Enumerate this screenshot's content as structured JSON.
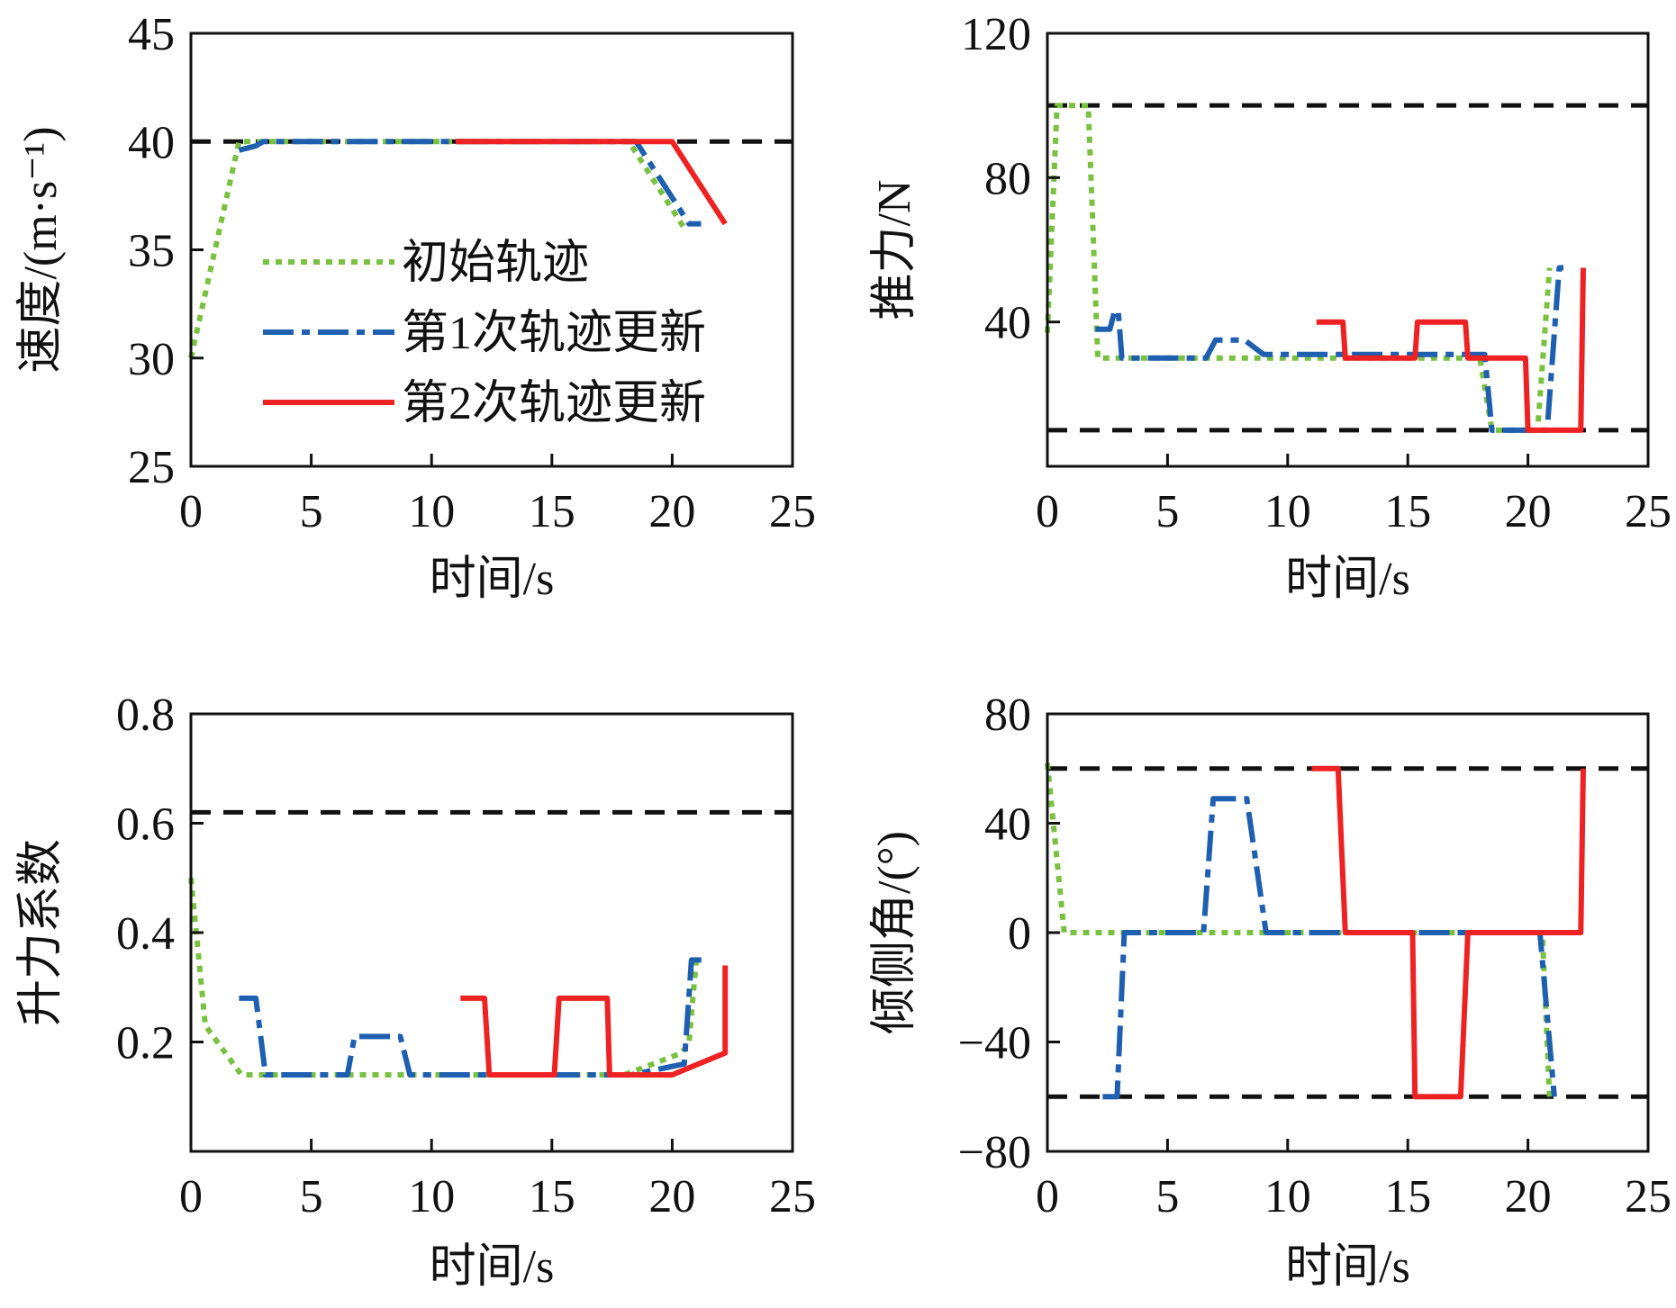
{
  "legend": [
    {
      "key": "initial",
      "label": "初始轨迹",
      "color": "#7ac142",
      "dash": "dotted"
    },
    {
      "key": "update1",
      "label": "第1次轨迹更新",
      "color": "#1f5fb0",
      "dash": "dashdot"
    },
    {
      "key": "update2",
      "label": "第2次轨迹更新",
      "color": "#ee2222",
      "dash": "solid"
    }
  ],
  "colors": {
    "bound": "#111111",
    "axis": "#111111"
  },
  "chart_data": [
    {
      "type": "line",
      "id": "speed",
      "xlabel": "时间/s",
      "ylabel": "速度/(m·s⁻¹)",
      "xlim": [
        0,
        25
      ],
      "ylim": [
        25,
        45
      ],
      "xticks": [
        "0",
        "5",
        "10",
        "15",
        "20",
        "25"
      ],
      "yticks": [
        "25",
        "30",
        "35",
        "40",
        "45"
      ],
      "bounds": [
        40
      ],
      "series": [
        {
          "key": "initial",
          "x": [
            0,
            2,
            18.2,
            20.5
          ],
          "y": [
            30,
            40,
            40,
            36
          ]
        },
        {
          "key": "update1",
          "x": [
            2,
            2.7,
            3,
            18.5,
            20.7,
            21.2
          ],
          "y": [
            39.6,
            39.8,
            40,
            40,
            36.2,
            36.2
          ]
        },
        {
          "key": "update2",
          "x": [
            11,
            20,
            22.2
          ],
          "y": [
            40,
            40,
            36.2
          ]
        }
      ]
    },
    {
      "type": "line",
      "id": "thrust",
      "xlabel": "时间/s",
      "ylabel": "推力/N",
      "xlim": [
        0,
        25
      ],
      "ylim": [
        0,
        120
      ],
      "xticks": [
        "0",
        "5",
        "10",
        "15",
        "20",
        "25"
      ],
      "yticks": [
        "",
        "40",
        "80",
        "120"
      ],
      "bounds": [
        100,
        10
      ],
      "series": [
        {
          "key": "initial",
          "x": [
            0,
            0.4,
            1.7,
            2.1,
            2.5,
            18,
            18.5,
            20.4,
            20.9
          ],
          "y": [
            37,
            100,
            100,
            30,
            30,
            30,
            10,
            10,
            55
          ]
        },
        {
          "key": "update1",
          "x": [
            2,
            2.6,
            2.8,
            2.95,
            3.1,
            6.6,
            7,
            8.2,
            9,
            18.2,
            18.5,
            20.8,
            21.3,
            21.6
          ],
          "y": [
            38,
            38,
            43,
            43,
            30,
            30,
            35,
            35,
            31,
            31,
            10,
            10,
            55,
            55
          ]
        },
        {
          "key": "update2",
          "x": [
            11.2,
            12.3,
            12.4,
            15.3,
            15.4,
            17.4,
            17.5,
            19.9,
            20.0,
            22.2,
            22.3
          ],
          "y": [
            40,
            40,
            30,
            30,
            40,
            40,
            30,
            30,
            10,
            10,
            55
          ]
        }
      ]
    },
    {
      "type": "line",
      "id": "lift",
      "xlabel": "时间/s",
      "ylabel": "升力系数",
      "xlim": [
        0,
        25
      ],
      "ylim": [
        0,
        0.8
      ],
      "xticks": [
        "0",
        "5",
        "10",
        "15",
        "20",
        "25"
      ],
      "yticks": [
        "",
        "0.2",
        "0.4",
        "0.6",
        "0.8"
      ],
      "bounds": [
        0.62
      ],
      "series": [
        {
          "key": "initial",
          "x": [
            0,
            0.6,
            2.1,
            18,
            20.4,
            20.7,
            21
          ],
          "y": [
            0.5,
            0.23,
            0.14,
            0.14,
            0.18,
            0.2,
            0.35
          ]
        },
        {
          "key": "update1",
          "x": [
            2,
            2.7,
            3.1,
            6.5,
            6.8,
            8.7,
            9.1,
            18.3,
            20.5,
            20.8,
            21.3
          ],
          "y": [
            0.28,
            0.28,
            0.14,
            0.14,
            0.21,
            0.21,
            0.14,
            0.14,
            0.16,
            0.35,
            0.35
          ]
        },
        {
          "key": "update2",
          "x": [
            11.2,
            12.2,
            12.4,
            15.1,
            15.3,
            17.3,
            17.4,
            20,
            22.2,
            22.2
          ],
          "y": [
            0.28,
            0.28,
            0.14,
            0.14,
            0.28,
            0.28,
            0.14,
            0.14,
            0.18,
            0.34
          ]
        }
      ]
    },
    {
      "type": "line",
      "id": "bank",
      "xlabel": "时间/s",
      "ylabel": "倾侧角/(°)",
      "xlim": [
        0,
        25
      ],
      "ylim": [
        -80,
        80
      ],
      "xticks": [
        "0",
        "5",
        "10",
        "15",
        "20",
        "25"
      ],
      "yticks": [
        "−80",
        "−40",
        "0",
        "40",
        "80"
      ],
      "bounds": [
        60,
        -60
      ],
      "series": [
        {
          "key": "initial",
          "x": [
            0,
            0.7,
            20.6,
            20.9
          ],
          "y": [
            62,
            0,
            0,
            -60
          ]
        },
        {
          "key": "update1",
          "x": [
            2.3,
            2.9,
            3.2,
            6.5,
            6.9,
            8.3,
            9.1,
            20.5,
            21.1
          ],
          "y": [
            -60,
            -60,
            0,
            0,
            49,
            49,
            0,
            0,
            -60
          ]
        },
        {
          "key": "update2",
          "x": [
            11,
            12.1,
            12.4,
            15.2,
            15.3,
            17.2,
            17.5,
            22.2,
            22.3
          ],
          "y": [
            60,
            60,
            0,
            0,
            -60,
            -60,
            0,
            0,
            60
          ]
        }
      ]
    }
  ]
}
